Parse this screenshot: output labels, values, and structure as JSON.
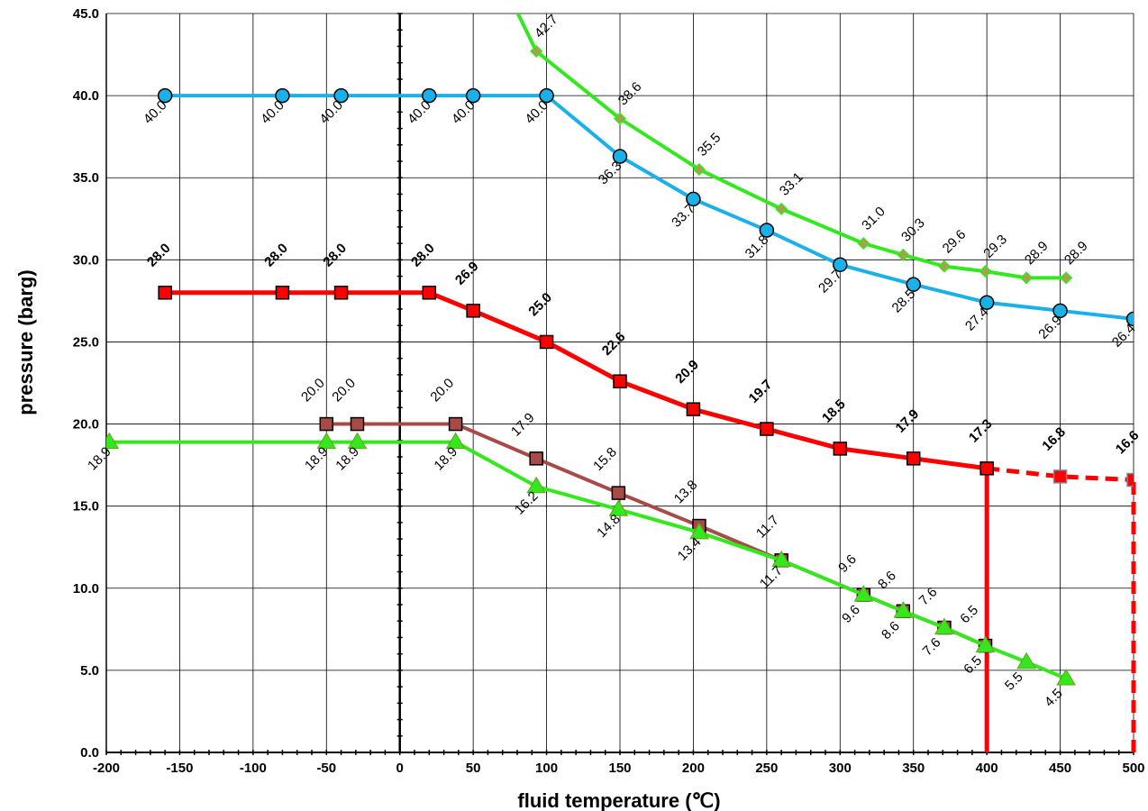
{
  "chart_data": {
    "type": "line",
    "xlabel": "fluid temperature (℃)",
    "ylabel": "pressure (barg)",
    "xlim": [
      -200,
      500
    ],
    "ylim": [
      0,
      45
    ],
    "x_ticks": [
      -200,
      -150,
      -100,
      -50,
      0,
      50,
      100,
      150,
      200,
      250,
      300,
      350,
      400,
      450,
      500
    ],
    "x_tick_labels": [
      "-200",
      "-150",
      "-100",
      "-50",
      "0",
      "50",
      "100",
      "150",
      "200",
      "250",
      "300",
      "350",
      "400",
      "450",
      "500"
    ],
    "y_ticks": [
      0,
      5,
      10,
      15,
      20,
      25,
      30,
      35,
      40,
      45
    ],
    "y_tick_labels": [
      "0.0",
      "5.0",
      "10.0",
      "15.0",
      "20.0",
      "25.0",
      "30.0",
      "35.0",
      "40.0",
      "45.0"
    ],
    "grid": true,
    "series": [
      {
        "color": "#1ab0e8",
        "marker": "circle",
        "x": [
          -160,
          -80,
          -40,
          20,
          50,
          100,
          150,
          200,
          250,
          300,
          350,
          400,
          450,
          500
        ],
        "y": [
          40.0,
          40.0,
          40.0,
          40.0,
          40.0,
          40.0,
          36.3,
          33.7,
          31.8,
          29.7,
          28.5,
          27.4,
          26.9,
          26.4
        ],
        "labels": [
          "40.0",
          "40.0",
          "40.0",
          "40.0",
          "40.0",
          "40.0",
          "36.3",
          "33.7",
          "31.8",
          "29.7",
          "28.5",
          "27.4",
          "26.9",
          "26.4"
        ]
      },
      {
        "color": "#33e81c",
        "marker": "diamond",
        "x": [
          75,
          93,
          150,
          204,
          260,
          316,
          343,
          371,
          399,
          427,
          454
        ],
        "y": [
          46.0,
          42.7,
          38.6,
          35.5,
          33.1,
          31.0,
          30.3,
          29.6,
          29.3,
          28.9,
          28.9
        ],
        "labels": [
          "",
          "42.7",
          "38.6",
          "35.5",
          "33.1",
          "31.0",
          "30.3",
          "29.6",
          "29.3",
          "28.9",
          "28.9"
        ]
      },
      {
        "color": "#ff0000",
        "marker": "square",
        "x": [
          -160,
          -80,
          -40,
          20,
          50,
          100,
          150,
          200,
          250,
          300,
          350,
          400
        ],
        "y": [
          28.0,
          28.0,
          28.0,
          28.0,
          26.9,
          25.0,
          22.6,
          20.9,
          19.7,
          18.5,
          17.9,
          17.3
        ],
        "labels": [
          "28.0",
          "28.0",
          "28.0",
          "28.0",
          "26.9",
          "25.0",
          "22.6",
          "20.9",
          "19.7",
          "18.5",
          "17.9",
          "17.3"
        ],
        "extension": {
          "style": "dashed",
          "x": [
            400,
            450,
            500
          ],
          "y": [
            17.3,
            16.8,
            16.6
          ],
          "labels": [
            "",
            "16.8",
            "16.6"
          ]
        }
      },
      {
        "color": "#a84b48",
        "marker": "square",
        "x": [
          -50,
          -29,
          38,
          93,
          149,
          204,
          260,
          316,
          343,
          371,
          399
        ],
        "y": [
          20.0,
          20.0,
          20.0,
          17.9,
          15.8,
          13.8,
          11.7,
          9.6,
          8.6,
          7.6,
          6.5
        ],
        "labels": [
          "20.0",
          "20.0",
          "20.0",
          "17.9",
          "15.8",
          "13.8",
          "11.7",
          "9.6",
          "8.6",
          "7.6",
          "6.5"
        ]
      },
      {
        "color": "#33e81c",
        "marker": "triangle",
        "x": [
          -198,
          -50,
          -29,
          38,
          93,
          149,
          204,
          260,
          316,
          343,
          371,
          399,
          427,
          454
        ],
        "y": [
          18.9,
          18.9,
          18.9,
          18.9,
          16.2,
          14.8,
          13.4,
          11.7,
          9.6,
          8.6,
          7.6,
          6.5,
          5.5,
          4.5
        ],
        "labels": [
          "18.9",
          "18.9",
          "18.9",
          "18.9",
          "16.2",
          "14.8",
          "13.4",
          "11.7",
          "9.6",
          "8.6",
          "7.6",
          "6.5",
          "5.5",
          "4.5"
        ]
      }
    ],
    "vertical_lines": [
      {
        "x": 400,
        "y": [
          0,
          17.3
        ],
        "color": "#ff0000",
        "style": "solid"
      },
      {
        "x": 500,
        "y": [
          0,
          16.6
        ],
        "color": "#ff0000",
        "style": "dashed"
      }
    ]
  }
}
